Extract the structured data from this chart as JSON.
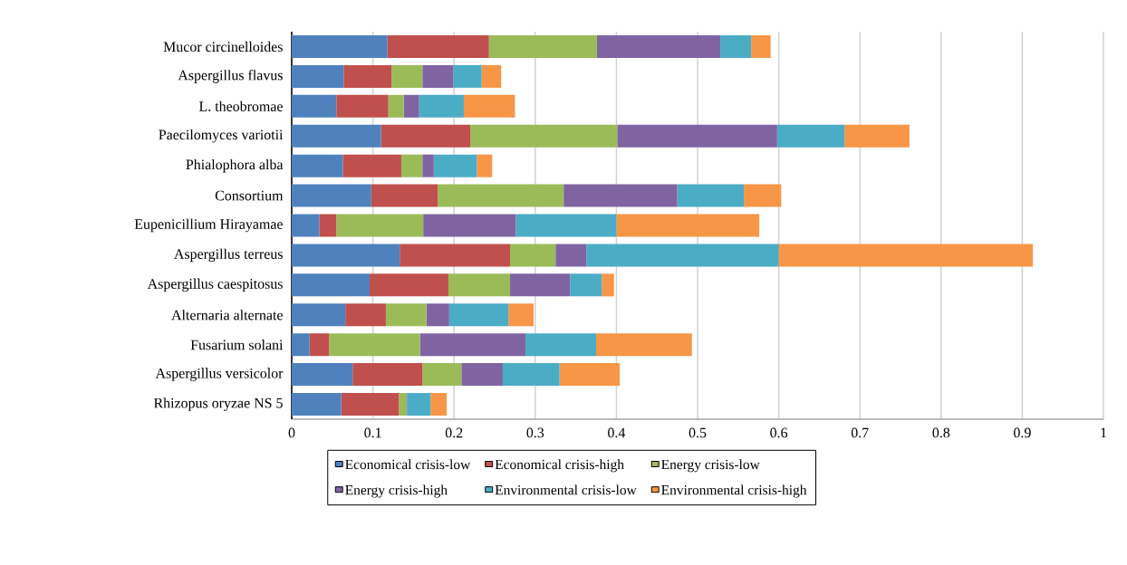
{
  "chart_data": {
    "type": "bar",
    "orientation": "horizontal",
    "stacked": true,
    "categories": [
      "Mucor circinelloides",
      "Aspergillus flavus",
      "L. theobromae",
      "Paecilomyces variotii",
      "Phialophora alba",
      "Consortium",
      "Eupenicillium Hirayamae",
      "Aspergillus terreus",
      "Aspergillus caespitosus",
      "Alternaria alternate",
      "Fusarium solani",
      "Aspergillus versicolor",
      "Rhizopus oryzae NS 5"
    ],
    "series": [
      {
        "name": "Economical crisis-low",
        "color": "#4f81bd",
        "values": [
          0.118,
          0.064,
          0.055,
          0.11,
          0.063,
          0.098,
          0.034,
          0.133,
          0.096,
          0.066,
          0.022,
          0.075,
          0.061
        ]
      },
      {
        "name": "Economical crisis-high",
        "color": "#c0504d",
        "values": [
          0.125,
          0.059,
          0.064,
          0.11,
          0.072,
          0.082,
          0.021,
          0.136,
          0.097,
          0.05,
          0.024,
          0.086,
          0.071
        ]
      },
      {
        "name": "Energy crisis-low",
        "color": "#9bbb59",
        "values": [
          0.133,
          0.038,
          0.019,
          0.181,
          0.026,
          0.155,
          0.107,
          0.056,
          0.076,
          0.05,
          0.112,
          0.048,
          0.009
        ]
      },
      {
        "name": "Energy crisis-high",
        "color": "#8064a2",
        "values": [
          0.152,
          0.038,
          0.019,
          0.197,
          0.014,
          0.14,
          0.114,
          0.038,
          0.074,
          0.028,
          0.13,
          0.051,
          0.001
        ]
      },
      {
        "name": "Environmental crisis-low",
        "color": "#4bacc6",
        "values": [
          0.038,
          0.035,
          0.055,
          0.083,
          0.053,
          0.082,
          0.124,
          0.237,
          0.039,
          0.073,
          0.087,
          0.07,
          0.029
        ]
      },
      {
        "name": "Environmental crisis-high",
        "color": "#f79646",
        "values": [
          0.024,
          0.024,
          0.063,
          0.08,
          0.019,
          0.046,
          0.176,
          0.313,
          0.015,
          0.031,
          0.118,
          0.074,
          0.02
        ]
      }
    ],
    "xlim": [
      0,
      1
    ],
    "xticks": [
      0,
      0.1,
      0.2,
      0.3,
      0.4,
      0.5,
      0.6,
      0.7,
      0.8,
      0.9,
      1
    ],
    "grid": "x",
    "legend": "bottom"
  }
}
